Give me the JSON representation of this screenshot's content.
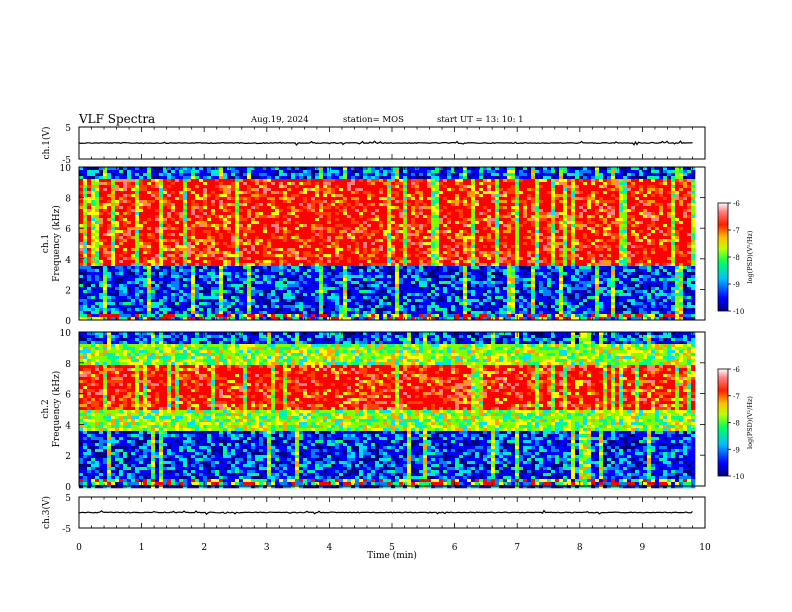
{
  "header": {
    "title": "VLF Spectra",
    "date": "Aug.19, 2024",
    "station": "station= MOS",
    "start_ut": "start  UT  =   13: 10: 1"
  },
  "colorbar": {
    "label": "log(PSD)(V²/Hz)",
    "ticks": [
      "-6",
      "-7",
      "-8",
      "-9",
      "-10"
    ],
    "range": [
      -10,
      -6
    ],
    "colors": [
      "#000080",
      "#0000ff",
      "#00ffff",
      "#00ff00",
      "#ffff00",
      "#ff8000",
      "#ff0000",
      "#ffffff"
    ]
  },
  "chart_data": [
    {
      "type": "line",
      "panel": "ch1-waveform",
      "ylabel": "ch.1(V)",
      "yticks": [
        "5",
        "-5"
      ],
      "ylim": [
        -5,
        5
      ],
      "x": [
        0,
        10
      ],
      "values": [
        0,
        0
      ],
      "xlim": [
        0,
        10
      ]
    },
    {
      "type": "heatmap",
      "panel": "ch1-spectrogram",
      "ylabel": "ch.1\nFrequency (kHz)",
      "yticks": [
        "0",
        "2",
        "4",
        "6",
        "8",
        "10"
      ],
      "ylim": [
        0,
        10
      ],
      "xlim": [
        0,
        10
      ],
      "data_extent_min": 9.82,
      "bands": [
        {
          "f": [
            0,
            0.4
          ],
          "level": "mixed"
        },
        {
          "f": [
            0.4,
            3.5
          ],
          "level": "low"
        },
        {
          "f": [
            3.5,
            9.2
          ],
          "level": "high"
        },
        {
          "f": [
            9.2,
            10
          ],
          "level": "low"
        }
      ]
    },
    {
      "type": "heatmap",
      "panel": "ch2-spectrogram",
      "ylabel": "ch.2\nFrequency (kHz)",
      "yticks": [
        "0",
        "2",
        "4",
        "6",
        "8",
        "10"
      ],
      "ylim": [
        0,
        10
      ],
      "xlim": [
        0,
        10
      ],
      "data_extent_min": 9.82,
      "bands": [
        {
          "f": [
            0,
            0.5
          ],
          "level": "mixed"
        },
        {
          "f": [
            0.5,
            3.5
          ],
          "level": "low"
        },
        {
          "f": [
            3.5,
            5.0
          ],
          "level": "mid"
        },
        {
          "f": [
            5.0,
            7.8
          ],
          "level": "high"
        },
        {
          "f": [
            7.8,
            9.2
          ],
          "level": "mid"
        },
        {
          "f": [
            9.2,
            10
          ],
          "level": "low"
        }
      ]
    },
    {
      "type": "line",
      "panel": "ch3-waveform",
      "ylabel": "ch.3(V)",
      "yticks": [
        "5",
        "-5"
      ],
      "ylim": [
        -5,
        5
      ],
      "x": [
        0,
        10
      ],
      "values": [
        0,
        0
      ],
      "xlim": [
        0,
        10
      ]
    }
  ],
  "xaxis": {
    "label": "Time (min)",
    "ticks": [
      "0",
      "1",
      "2",
      "3",
      "4",
      "5",
      "6",
      "7",
      "8",
      "9",
      "10"
    ],
    "xlim": [
      0,
      10
    ]
  }
}
